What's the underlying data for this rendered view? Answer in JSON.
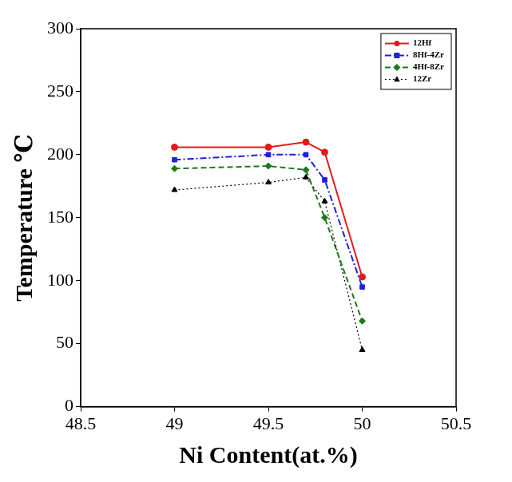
{
  "chart_data": {
    "type": "line",
    "x_label": "Ni Content(at.%)",
    "y_label": "Temperature ℃",
    "x": [
      49,
      49.5,
      49.7,
      49.8,
      50
    ],
    "series": [
      {
        "name": "12Hf",
        "color": "#e31a1c",
        "marker": "circle",
        "line_style": "solid",
        "values": [
          206,
          206,
          210,
          202,
          103
        ]
      },
      {
        "name": "8Hf-4Zr",
        "color": "#1f1fe0",
        "marker": "square",
        "line_style": "dashdot",
        "values": [
          196,
          200,
          200,
          180,
          95
        ]
      },
      {
        "name": "4Hf-8Zr",
        "color": "#1a7a1a",
        "marker": "diamond",
        "line_style": "dashed",
        "values": [
          189,
          191,
          188,
          150,
          68
        ]
      },
      {
        "name": "12Zr",
        "color": "#000000",
        "marker": "triangle",
        "line_style": "dotted",
        "values": [
          172,
          178,
          182,
          163,
          45
        ]
      }
    ],
    "xlim": [
      48.5,
      50.5
    ],
    "xticks": [
      48.5,
      49,
      49.5,
      50,
      50.5
    ],
    "ylim": [
      0,
      300
    ],
    "yticks": [
      0,
      50,
      100,
      150,
      200,
      250,
      300
    ],
    "grid": false,
    "legend": "upper right"
  }
}
